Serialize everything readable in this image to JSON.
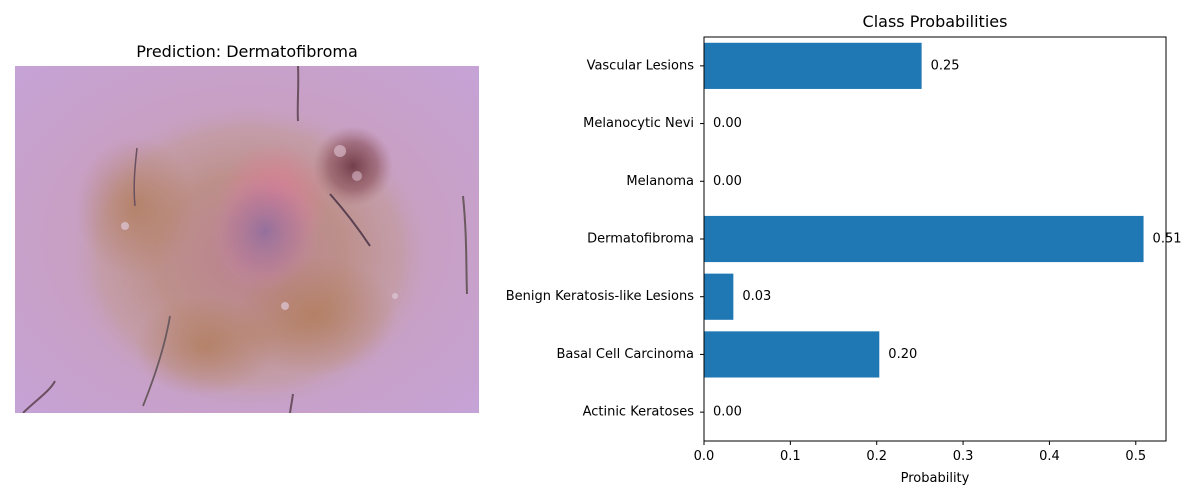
{
  "image_panel": {
    "title": "Prediction: Dermatofibroma"
  },
  "chart_data": {
    "type": "bar",
    "orientation": "horizontal",
    "title": "Class Probabilities",
    "xlabel": "Probability",
    "ylabel": "",
    "categories": [
      "Actinic Keratoses",
      "Basal Cell Carcinoma",
      "Benign Keratosis-like Lesions",
      "Dermatofibroma",
      "Melanoma",
      "Melanocytic Nevi",
      "Vascular Lesions"
    ],
    "values": [
      0.0,
      0.203,
      0.034,
      0.509,
      0.0,
      0.0,
      0.252
    ],
    "value_labels": [
      "0.00",
      "0.20",
      "0.03",
      "0.51",
      "0.00",
      "0.00",
      "0.25"
    ],
    "xlim": [
      0,
      0.535
    ],
    "xticks": [
      0.0,
      0.1,
      0.2,
      0.3,
      0.4,
      0.5
    ],
    "xtick_labels": [
      "0.0",
      "0.1",
      "0.2",
      "0.3",
      "0.4",
      "0.5"
    ],
    "bar_color": "#1f77b4",
    "grid": false
  }
}
